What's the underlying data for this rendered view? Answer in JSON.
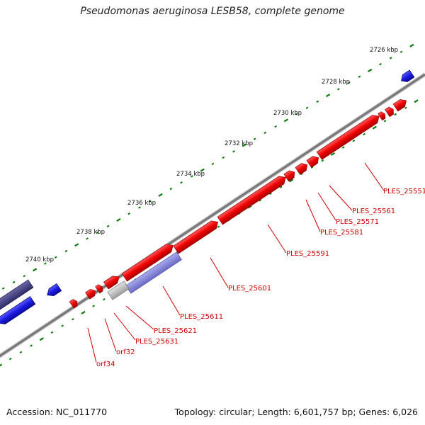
{
  "title": "Pseudomonas aeruginosa LESB58, complete genome",
  "footer": {
    "accession": "Accession: NC_011770",
    "summary": "Topology: circular; Length: 6,601,757 bp; Genes: 6,026"
  },
  "ticks": [
    "2726 kbp",
    "2728 kbp",
    "2730 kbp",
    "2732 kbp",
    "2734 kbp",
    "2736 kbp",
    "2738 kbp",
    "2740 kbp"
  ],
  "gene_labels": [
    "PLES_25551",
    "PLES_25561",
    "PLES_25571",
    "PLES_25581",
    "PLES_25591",
    "PLES_25601",
    "PLES_25611",
    "PLES_25621",
    "PLES_25631",
    "orf32",
    "orf34"
  ],
  "colors": {
    "forward_cds": "#ee0000",
    "reverse_cds": "#1a1ae0",
    "reverse_cds_faded": "#7b7bd6",
    "dark_feature": "#3d3a7a",
    "gray_feature": "#bbbbbb",
    "backbone": "#7a7a7a",
    "tick_dots": "#0a7a0a",
    "label_text": "#d00000"
  }
}
